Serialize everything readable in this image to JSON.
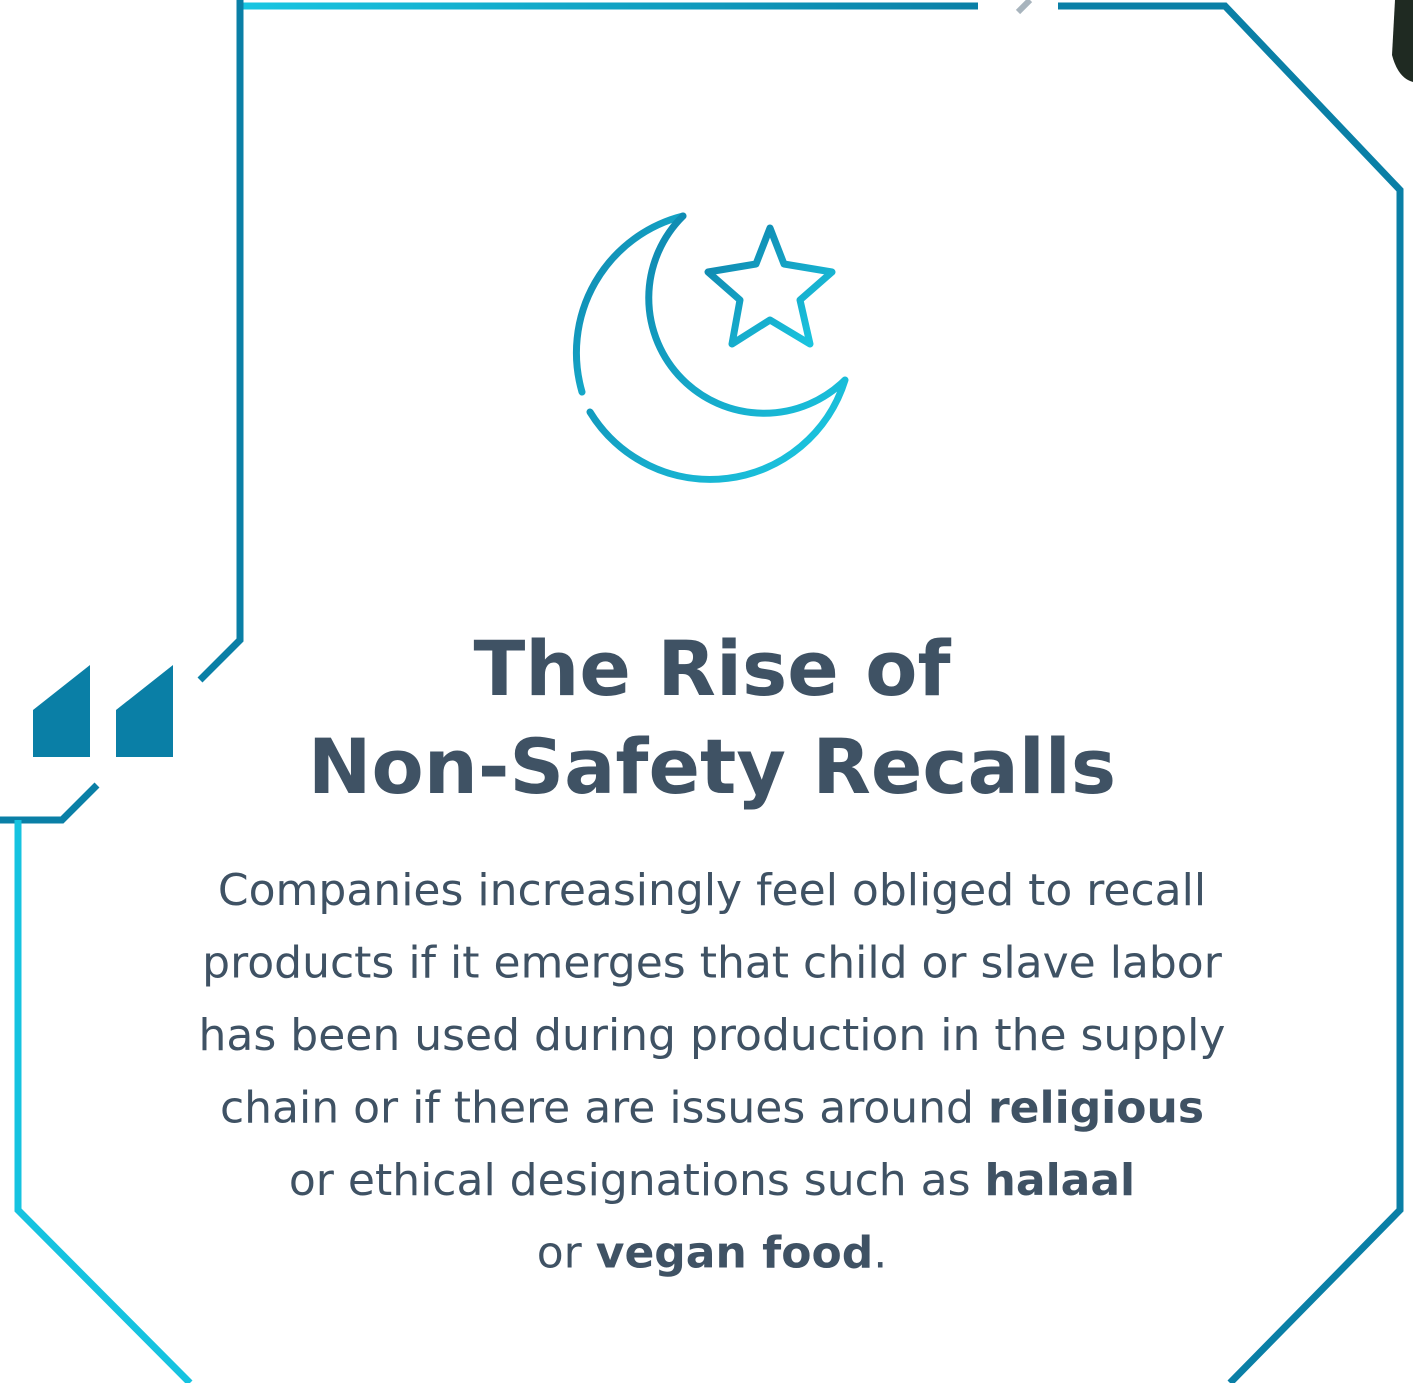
{
  "title": {
    "lines": [
      "The Rise of",
      "Non-Safety Recalls"
    ]
  },
  "body": {
    "lines": [
      [
        {
          "text": "Companies increasingly feel obliged to recall",
          "bold": false
        }
      ],
      [
        {
          "text": "products if it emerges that child or slave labor",
          "bold": false
        }
      ],
      [
        {
          "text": "has been used during production in the supply",
          "bold": false
        }
      ],
      [
        {
          "text": "chain or if there are issues around ",
          "bold": false
        },
        {
          "text": "religious",
          "bold": true
        }
      ],
      [
        {
          "text": "or ethical designations such as ",
          "bold": false
        },
        {
          "text": "halaal",
          "bold": true
        }
      ],
      [
        {
          "text": "or ",
          "bold": false
        },
        {
          "text": "vegan food",
          "bold": true
        },
        {
          "text": ".",
          "bold": false
        }
      ]
    ]
  }
}
